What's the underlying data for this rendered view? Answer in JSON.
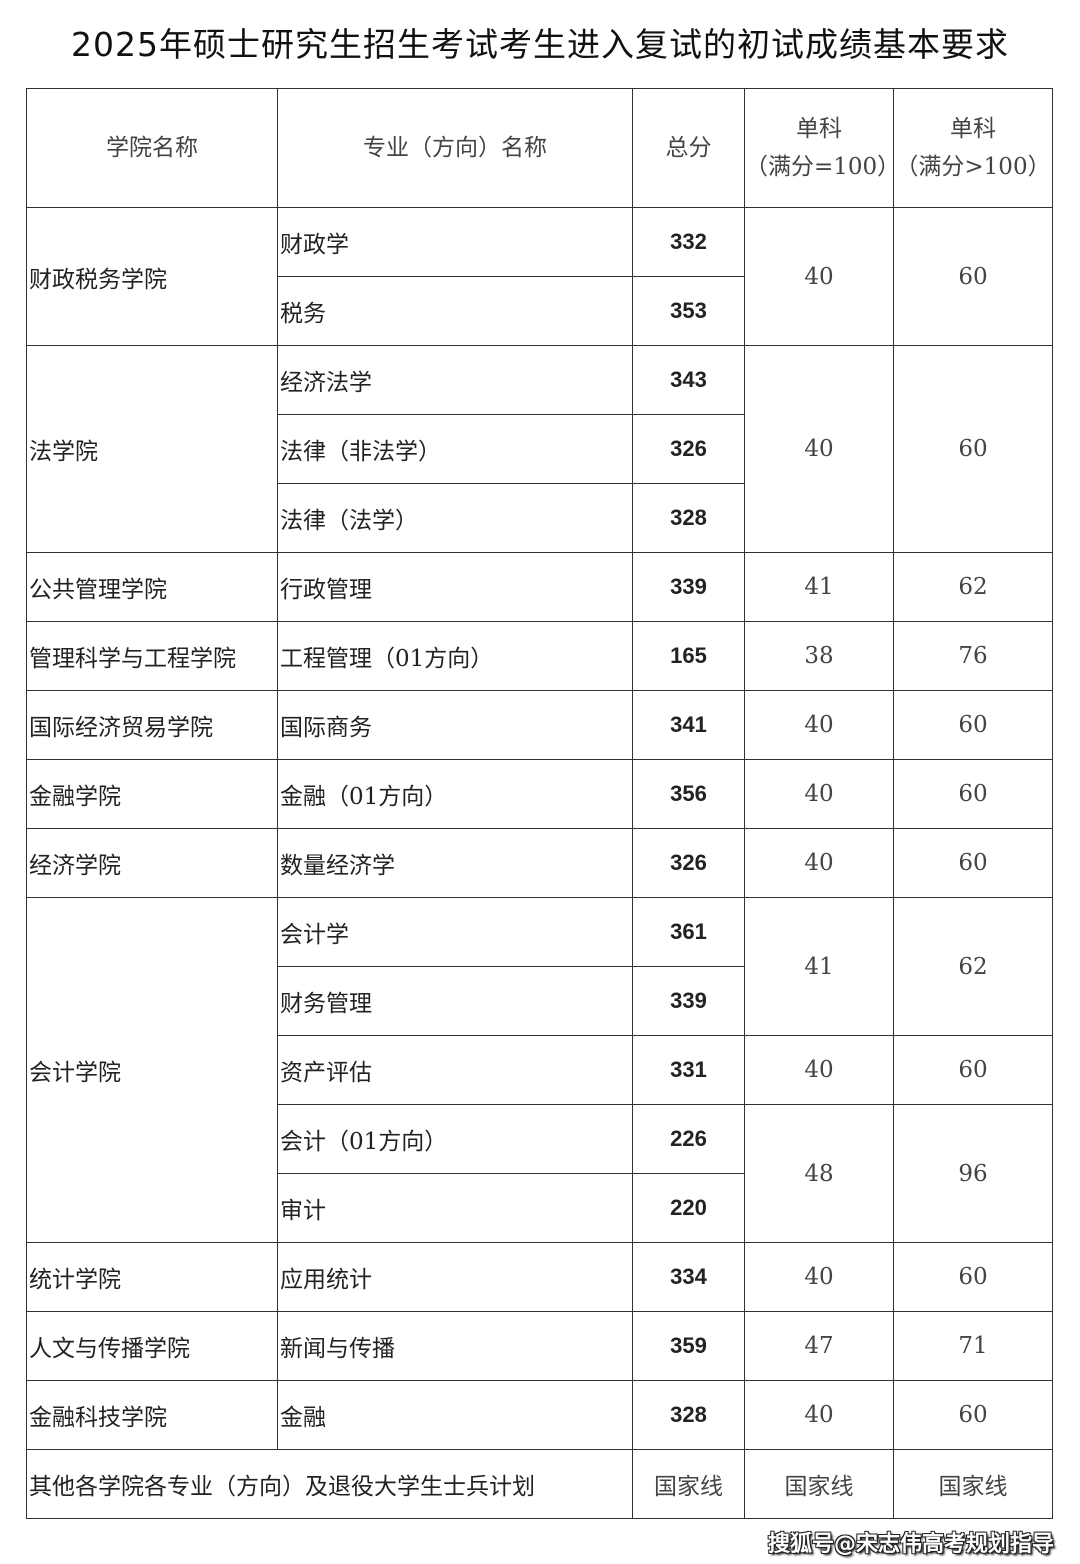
{
  "title": "2025年硕士研究生招生考试考生进入复试的初试成绩基本要求",
  "headers": [
    "学院名称",
    "专业（方向）名称",
    "总分",
    [
      "单科",
      "（满分=100）"
    ],
    [
      "单科",
      "（满分>100）"
    ]
  ],
  "rows": [
    {
      "college": "财政税务学院",
      "college_span": 2,
      "major": "财政学",
      "total": "332",
      "s100": "40",
      "s_gt100": "60",
      "score_span": 2
    },
    {
      "major": "税务",
      "total": "353"
    },
    {
      "college": "法学院",
      "college_span": 3,
      "major": "经济法学",
      "total": "343",
      "s100": "40",
      "s_gt100": "60",
      "score_span": 3
    },
    {
      "major": "法律（非法学）",
      "total": "326"
    },
    {
      "major": "法律（法学）",
      "total": "328"
    },
    {
      "college": "公共管理学院",
      "college_span": 1,
      "major": "行政管理",
      "total": "339",
      "s100": "41",
      "s_gt100": "62",
      "score_span": 1
    },
    {
      "college": "管理科学与工程学院",
      "college_span": 1,
      "major": "工程管理（01方向）",
      "total": "165",
      "s100": "38",
      "s_gt100": "76",
      "score_span": 1
    },
    {
      "college": "国际经济贸易学院",
      "college_span": 1,
      "major": "国际商务",
      "total": "341",
      "s100": "40",
      "s_gt100": "60",
      "score_span": 1
    },
    {
      "college": "金融学院",
      "college_span": 1,
      "major": "金融（01方向）",
      "total": "356",
      "s100": "40",
      "s_gt100": "60",
      "score_span": 1
    },
    {
      "college": "经济学院",
      "college_span": 1,
      "major": "数量经济学",
      "total": "326",
      "s100": "40",
      "s_gt100": "60",
      "score_span": 1
    },
    {
      "college": "会计学院",
      "college_span": 5,
      "major": "会计学",
      "total": "361",
      "s100": "41",
      "s_gt100": "62",
      "score_span": 2
    },
    {
      "major": "财务管理",
      "total": "339"
    },
    {
      "major": "资产评估",
      "total": "331",
      "s100": "40",
      "s_gt100": "60",
      "score_span": 1
    },
    {
      "major": "会计（01方向）",
      "total": "226",
      "s100": "48",
      "s_gt100": "96",
      "score_span": 2
    },
    {
      "major": "审计",
      "total": "220"
    },
    {
      "college": "统计学院",
      "college_span": 1,
      "major": "应用统计",
      "total": "334",
      "s100": "40",
      "s_gt100": "60",
      "score_span": 1
    },
    {
      "college": "人文与传播学院",
      "college_span": 1,
      "major": "新闻与传播",
      "total": "359",
      "s100": "47",
      "s_gt100": "71",
      "score_span": 1
    },
    {
      "college": "金融科技学院",
      "college_span": 1,
      "major": "金融",
      "total": "328",
      "s100": "40",
      "s_gt100": "60",
      "score_span": 1
    }
  ],
  "footer_row": {
    "label": "其他各学院各专业（方向）及退役大学生士兵计划",
    "total": "国家线",
    "s100": "国家线",
    "s_gt100": "国家线"
  },
  "watermark": "搜狐号@宋志伟高考规划指导"
}
